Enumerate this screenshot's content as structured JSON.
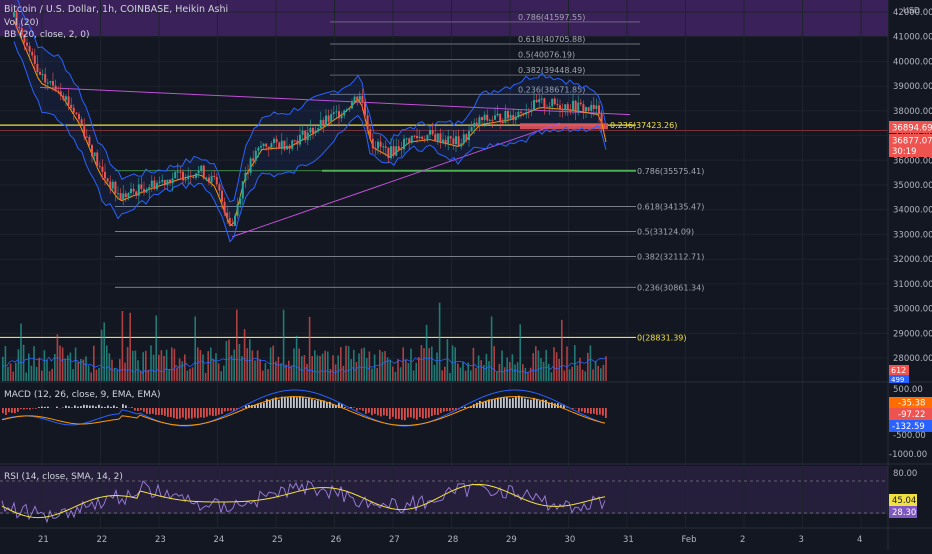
{
  "header": {
    "symbol_line": "Bitcoin / U.S. Dollar, 1h, COINBASE, Heikin Ashi",
    "vol_indicator": "Vol (20)",
    "bb_indicator": "BB (20, close, 2, 0)",
    "currency": "USD"
  },
  "price_axis": {
    "ticks": [
      "42000.00",
      "41000.00",
      "40000.00",
      "39000.00",
      "38000.00",
      "37000.00",
      "36000.00",
      "35000.00",
      "34000.00",
      "33000.00",
      "32000.00",
      "31000.00",
      "30000.00",
      "29000.00",
      "28000.00"
    ],
    "current_price": "36894.69",
    "alt_price": "36877.07",
    "countdown": "30:19",
    "vol_badge_1": "612",
    "vol_badge_2": "499"
  },
  "fib_upper": [
    {
      "label": "0.786(41597.55)",
      "price": 41597.55
    },
    {
      "label": "0.618(40705.88)",
      "price": 40705.88
    },
    {
      "label": "0.5(40076.19)",
      "price": 40076.19
    },
    {
      "label": "0.382(39448.49)",
      "price": 39448.49
    },
    {
      "label": "0.236(38671.85)",
      "price": 38671.85
    }
  ],
  "fib_lower": [
    {
      "label": "0.236(37423.26)",
      "price": 37423.26,
      "color": "#f2e040"
    },
    {
      "label": "0.786(35575.41)",
      "price": 35575.41,
      "color": "#4caf50"
    },
    {
      "label": "0.618(34135.47)",
      "price": 34135.47,
      "color": "#9aa0a8"
    },
    {
      "label": "0.5(33124.09)",
      "price": 33124.09,
      "color": "#9aa0a8"
    },
    {
      "label": "0.382(32112.71)",
      "price": 32112.71,
      "color": "#9aa0a8"
    },
    {
      "label": "0.236(30861.34)",
      "price": 30861.34,
      "color": "#9aa0a8"
    },
    {
      "label": "0(28831.39)",
      "price": 28831.39,
      "color": "#f2e040"
    }
  ],
  "macd": {
    "label": "MACD (12, 26, close, 9, EMA, EMA)",
    "ticks": [
      "500.00",
      "-500.00",
      "-1000.00"
    ],
    "badge_hist": "-35.38",
    "badge_signal": "-97.22",
    "badge_macd": "-132.59"
  },
  "rsi": {
    "label": "RSI (14, close, SMA, 14, 2)",
    "tick": "80.00",
    "badge_ma": "45.04",
    "badge_rsi": "28.30"
  },
  "time_axis": {
    "labels": [
      "21",
      "22",
      "23",
      "24",
      "25",
      "26",
      "27",
      "28",
      "29",
      "30",
      "31",
      "Feb",
      "2",
      "3",
      "4"
    ]
  },
  "chart_data": {
    "type": "candlestick",
    "title": "Bitcoin / U.S. Dollar, 1h, COINBASE, Heikin Ashi",
    "ylim": [
      27600,
      42400
    ],
    "x": [
      "21",
      "22",
      "23",
      "24",
      "25",
      "26",
      "27",
      "28",
      "29",
      "30",
      "30.8"
    ],
    "close_path": [
      39200,
      37300,
      34700,
      35700,
      33500,
      36800,
      37900,
      38900,
      36400,
      37200,
      37900,
      38500,
      38000,
      37400
    ],
    "last_close": 36894.69,
    "colors": {
      "up": "#26a69a",
      "down": "#ef5350",
      "bb": "#2962ff",
      "fib_band": "#7b1fa2"
    },
    "legend": "none",
    "grid": "on"
  }
}
